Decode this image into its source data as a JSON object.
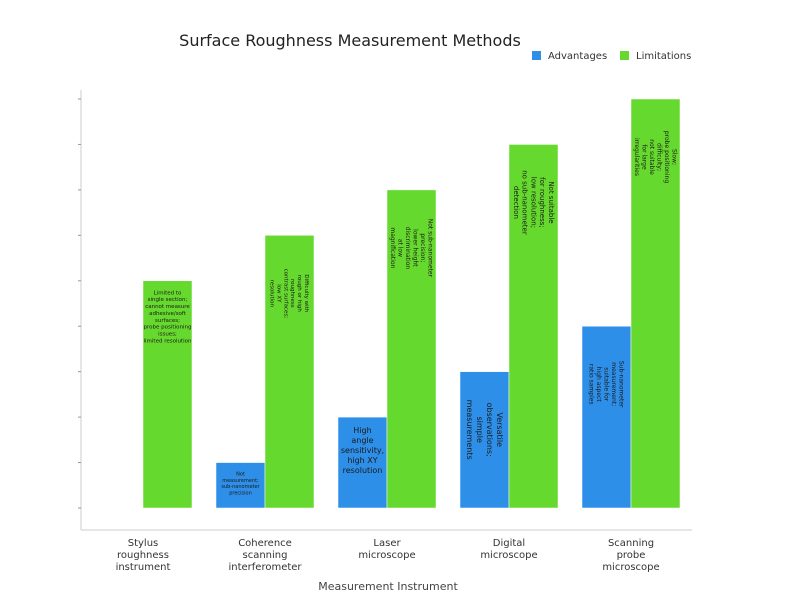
{
  "chart_data": {
    "type": "bar",
    "title": "Surface Roughness Measurement Methods",
    "xlabel": "Measurement Instrument",
    "ylabel": "",
    "ylim": [
      0,
      9
    ],
    "grid": false,
    "legend_position": "top-right",
    "categories": [
      "Stylus roughness instrument",
      "Coherence scanning interferometer",
      "Laser microscope",
      "Digital microscope",
      "Scanning probe microscope"
    ],
    "category_lines": [
      [
        "Stylus",
        "roughness",
        "instrument"
      ],
      [
        "Coherence",
        "scanning",
        "interferometer"
      ],
      [
        "Laser",
        "microscope"
      ],
      [
        "Digital",
        "microscope"
      ],
      [
        "Scanning",
        "probe",
        "microscope"
      ]
    ],
    "series": [
      {
        "name": "Advantages",
        "color": "#2e8fe8",
        "values": [
          0,
          1,
          2,
          3,
          4
        ],
        "labels": [
          [],
          [
            "Not",
            "measurement;",
            "sub-nanometer",
            "precision"
          ],
          [
            "High",
            "angle",
            "sensitivity,",
            "high XY",
            "resolution"
          ],
          [
            "Versatile",
            "observations;",
            "simple",
            "measurements"
          ],
          [
            "Sub-nanometer",
            "measurement;",
            "suitable for",
            "high aspect",
            "ratio samples"
          ]
        ]
      },
      {
        "name": "Limitations",
        "color": "#66d92e",
        "values": [
          5,
          6,
          7,
          8,
          9
        ],
        "labels": [
          [
            "Limited to",
            "single section;",
            "cannot measure",
            "adhesive/soft",
            "surfaces;",
            "probe positioning",
            "issues;",
            "limited resolution"
          ],
          [
            "Difficulty with",
            "rough or high",
            "roughness",
            "contrast surfaces;",
            "low XY",
            "resolution"
          ],
          [
            "Not sub-nanometer",
            "precision;",
            "lower height",
            "discrimination",
            "at low",
            "magnification"
          ],
          [
            "Not suitable",
            "for roughness;",
            "low resolution;",
            "no sub-nanometer",
            "detection"
          ],
          [
            "Slow;",
            "probe positioning",
            "difficulty;",
            "not suitable",
            "for large",
            "irregularities"
          ]
        ]
      }
    ]
  }
}
